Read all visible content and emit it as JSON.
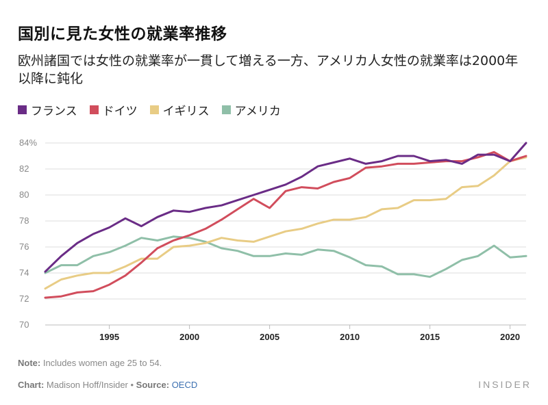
{
  "title": "国別に見た女性の就業率推移",
  "subtitle": "欧州諸国では女性の就業率が一貫して増える一方、アメリカ人女性の就業率は2000年以降に鈍化",
  "chart_data": {
    "type": "line",
    "title": "国別に見た女性の就業率推移",
    "xlabel": "",
    "ylabel": "",
    "xlim": [
      1991,
      2021
    ],
    "ylim": [
      70,
      84
    ],
    "y_ticks": [
      70,
      72,
      74,
      76,
      78,
      80,
      82,
      84
    ],
    "y_tick_labels": [
      "70",
      "72",
      "74",
      "76",
      "78",
      "80",
      "82",
      "84%"
    ],
    "x_ticks": [
      1995,
      2000,
      2005,
      2010,
      2015,
      2020
    ],
    "x_tick_labels": [
      "1995",
      "2000",
      "2005",
      "2010",
      "2015",
      "2020"
    ],
    "x": [
      1991,
      1992,
      1993,
      1994,
      1995,
      1996,
      1997,
      1998,
      1999,
      2000,
      2001,
      2002,
      2003,
      2004,
      2005,
      2006,
      2007,
      2008,
      2009,
      2010,
      2011,
      2012,
      2013,
      2014,
      2015,
      2016,
      2017,
      2018,
      2019,
      2020,
      2021
    ],
    "series": [
      {
        "name": "フランス",
        "color": "#6a2c86",
        "values": [
          74.1,
          75.3,
          76.3,
          77.0,
          77.5,
          78.2,
          77.6,
          78.3,
          78.8,
          78.7,
          79.0,
          79.2,
          79.6,
          80.0,
          80.4,
          80.8,
          81.4,
          82.2,
          82.5,
          82.8,
          82.4,
          82.6,
          83.0,
          83.0,
          82.6,
          82.7,
          82.4,
          83.1,
          83.1,
          82.6,
          84.0
        ]
      },
      {
        "name": "ドイツ",
        "color": "#d14d5c",
        "values": [
          72.1,
          72.2,
          72.5,
          72.6,
          73.1,
          73.8,
          74.8,
          75.9,
          76.5,
          76.9,
          77.4,
          78.1,
          78.9,
          79.7,
          79.0,
          80.3,
          80.6,
          80.5,
          81.0,
          81.3,
          82.1,
          82.2,
          82.4,
          82.4,
          82.5,
          82.6,
          82.6,
          82.9,
          83.3,
          82.6,
          83.0
        ]
      },
      {
        "name": "イギリス",
        "color": "#e8cc85",
        "values": [
          72.8,
          73.5,
          73.8,
          74.0,
          74.0,
          74.5,
          75.1,
          75.1,
          76.0,
          76.1,
          76.3,
          76.7,
          76.5,
          76.4,
          76.8,
          77.2,
          77.4,
          77.8,
          78.1,
          78.1,
          78.3,
          78.9,
          79.0,
          79.6,
          79.6,
          79.7,
          80.6,
          80.7,
          81.5,
          82.6,
          82.9
        ]
      },
      {
        "name": "アメリカ",
        "color": "#8fbfa8",
        "values": [
          74.0,
          74.6,
          74.6,
          75.3,
          75.6,
          76.1,
          76.7,
          76.5,
          76.8,
          76.7,
          76.4,
          75.9,
          75.7,
          75.3,
          75.3,
          75.5,
          75.4,
          75.8,
          75.7,
          75.2,
          74.6,
          74.5,
          73.9,
          73.9,
          73.7,
          74.3,
          75.0,
          75.3,
          76.1,
          75.2,
          75.3
        ]
      }
    ]
  },
  "legend": {
    "items": [
      {
        "label": "フランス",
        "color": "#6a2c86"
      },
      {
        "label": "ドイツ",
        "color": "#d14d5c"
      },
      {
        "label": "イギリス",
        "color": "#e8cc85"
      },
      {
        "label": "アメリカ",
        "color": "#8fbfa8"
      }
    ]
  },
  "note": {
    "label": "Note:",
    "text": " Includes women age 25 to 54."
  },
  "credit": {
    "label": "Chart:",
    "author": " Madison Hoff/Insider • ",
    "source_label": "Source:",
    "source": "OECD"
  },
  "brand": "INSIDER"
}
